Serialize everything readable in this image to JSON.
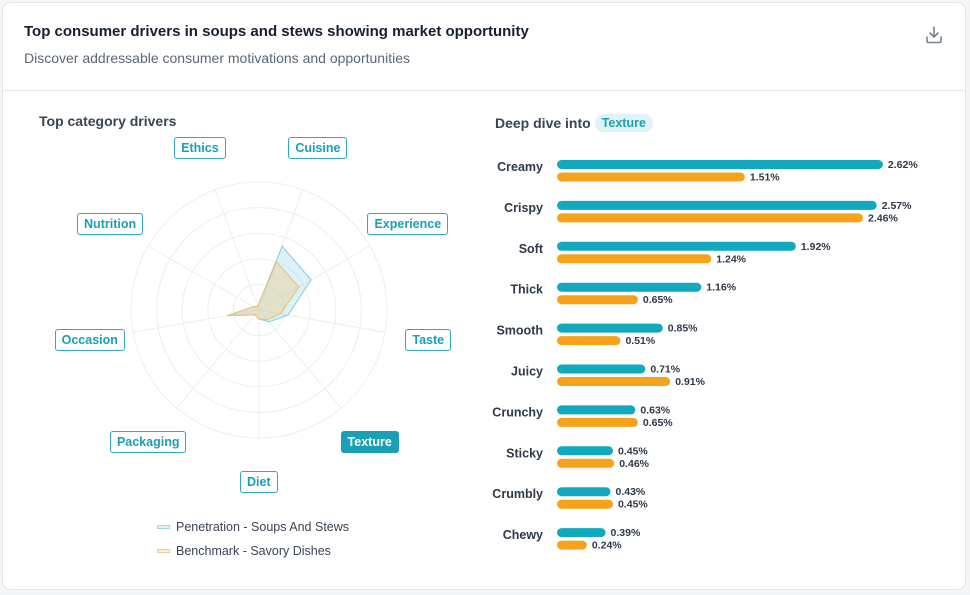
{
  "header": {
    "title": "Top consumer drivers in soups and stews showing market opportunity",
    "subtitle": "Discover addressable consumer motivations and opportunities",
    "download_icon": "download-icon"
  },
  "left": {
    "title": "Top category drivers",
    "labels": [
      "Cuisine",
      "Experience",
      "Taste",
      "Texture",
      "Diet",
      "Packaging",
      "Occasion",
      "Nutrition",
      "Ethics"
    ],
    "active_label": "Texture"
  },
  "right": {
    "title": "Deep dive into",
    "chip": "Texture"
  },
  "colors": {
    "teal": "#12a8be",
    "orange": "#f7a21b"
  },
  "chart_data": [
    {
      "type": "radar",
      "categories": [
        "Cuisine",
        "Experience",
        "Taste",
        "Texture",
        "Diet",
        "Packaging",
        "Occasion",
        "Nutrition",
        "Ethics"
      ],
      "series": [
        {
          "name": "Penetration - Soups And Stews",
          "values": [
            0.53,
            0.47,
            0.23,
            0.12,
            0.07,
            0.05,
            0.25,
            0.05,
            0.03
          ]
        },
        {
          "name": "Benchmark - Savory Dishes",
          "values": [
            0.4,
            0.36,
            0.17,
            0.1,
            0.07,
            0.05,
            0.25,
            0.05,
            0.03
          ]
        }
      ],
      "grid": true
    },
    {
      "type": "bar",
      "orientation": "horizontal",
      "categories": [
        "Creamy",
        "Crispy",
        "Soft",
        "Thick",
        "Smooth",
        "Juicy",
        "Crunchy",
        "Sticky",
        "Crumbly",
        "Chewy"
      ],
      "series": [
        {
          "values": [
            2.62,
            2.57,
            1.92,
            1.16,
            0.85,
            0.71,
            0.63,
            0.45,
            0.43,
            0.39
          ],
          "labels": [
            "2.62%",
            "2.57%",
            "1.92%",
            "1.16%",
            "0.85%",
            "0.71%",
            "0.63%",
            "0.45%",
            "0.43%",
            "0.39%"
          ]
        },
        {
          "values": [
            1.51,
            2.46,
            1.24,
            0.65,
            0.51,
            0.91,
            0.65,
            0.46,
            0.45,
            0.24
          ],
          "labels": [
            "1.51%",
            "2.46%",
            "1.24%",
            "0.65%",
            "0.51%",
            "0.91%",
            "0.65%",
            "0.46%",
            "0.45%",
            "0.24%"
          ]
        }
      ],
      "unit": "%"
    }
  ]
}
